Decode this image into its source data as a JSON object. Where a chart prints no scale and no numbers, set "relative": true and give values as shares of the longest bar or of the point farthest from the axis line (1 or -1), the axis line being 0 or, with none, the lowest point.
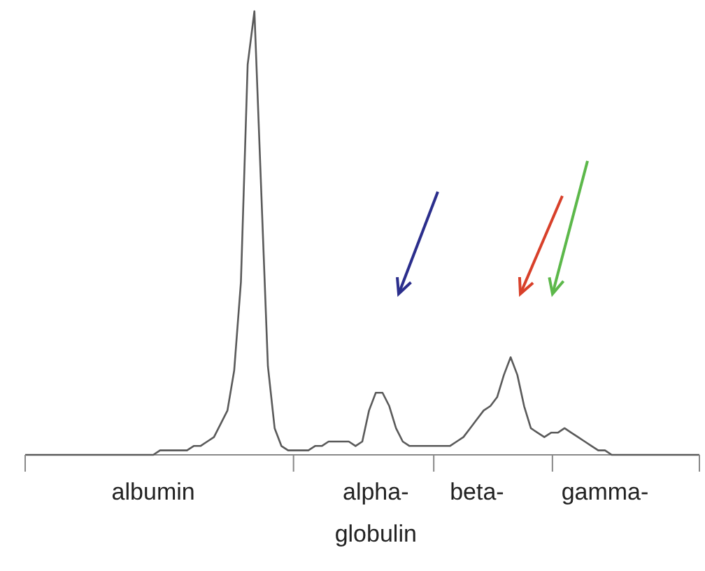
{
  "chart_data": {
    "type": "line",
    "relative": true,
    "grid": false,
    "marker": "none",
    "line_style": "solid",
    "categories": [
      null,
      null,
      null,
      null,
      null,
      null,
      null,
      null,
      null,
      null,
      null,
      null,
      null,
      null,
      null,
      null,
      null,
      null,
      null,
      "albumin",
      null,
      null,
      null,
      null,
      null,
      null,
      null,
      null,
      null,
      null,
      null,
      null,
      null,
      null,
      null,
      null,
      null,
      null,
      null,
      null,
      null,
      null,
      null,
      null,
      null,
      null,
      null,
      null,
      null,
      null,
      null,
      null,
      "alpha-\nglobulin",
      null,
      null,
      null,
      null,
      null,
      null,
      null,
      null,
      null,
      null,
      null,
      null,
      null,
      null,
      "beta-",
      null,
      null,
      null,
      null,
      null,
      null,
      null,
      null,
      null,
      null,
      null,
      null,
      null,
      null,
      null,
      null,
      null,
      null,
      "gamma-",
      null,
      null,
      null,
      null,
      null,
      null,
      null,
      null,
      null,
      null,
      null,
      null,
      null,
      null
    ],
    "series": [
      {
        "color": "#5a5a5a",
        "values": [
          0,
          0,
          0,
          0,
          0,
          0,
          0,
          0,
          0,
          0,
          0,
          0,
          0,
          0,
          0,
          0,
          0,
          0,
          0,
          0,
          0.01,
          0.01,
          0.01,
          0.01,
          0.01,
          0.02,
          0.02,
          0.03,
          0.04,
          0.07,
          0.1,
          0.19,
          0.39,
          0.88,
          1,
          0.6,
          0.2,
          0.06,
          0.02,
          0.01,
          0.01,
          0.01,
          0.01,
          0.02,
          0.02,
          0.03,
          0.03,
          0.03,
          0.03,
          0.02,
          0.03,
          0.1,
          0.14,
          0.14,
          0.11,
          0.06,
          0.03,
          0.02,
          0.02,
          0.02,
          0.02,
          0.02,
          0.02,
          0.02,
          0.03,
          0.04,
          0.06,
          0.08,
          0.1,
          0.11,
          0.13,
          0.18,
          0.22,
          0.18,
          0.11,
          0.06,
          0.05,
          0.04,
          0.05,
          0.05,
          0.06,
          0.05,
          0.04,
          0.03,
          0.02,
          0.01,
          0.01,
          0,
          0,
          0,
          0,
          0,
          0,
          0,
          0,
          0,
          0,
          0,
          0,
          0,
          0
        ]
      }
    ]
  }
}
